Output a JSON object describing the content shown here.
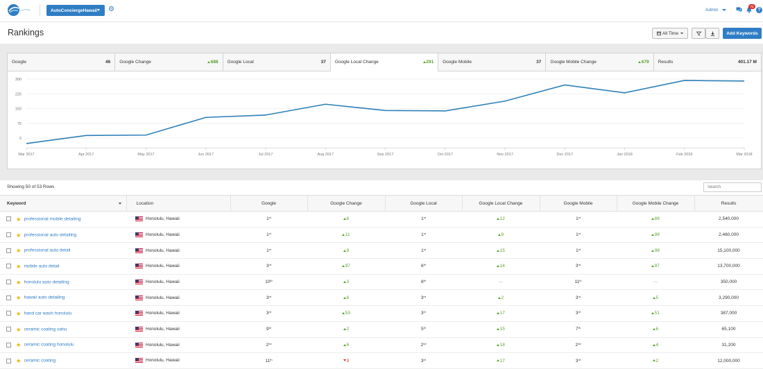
{
  "header": {
    "account_label": "AutoConciergeHawaii",
    "user_label": "Admin",
    "notification_count": "71",
    "help_glyph": "?"
  },
  "page": {
    "title": "Rankings",
    "time_filter_label": "All Time",
    "add_keywords_label": "Add Keywords"
  },
  "stats": [
    {
      "label": "Google",
      "value": "46",
      "trend": "none"
    },
    {
      "label": "Google Change",
      "value": "688",
      "trend": "up"
    },
    {
      "label": "Google Local",
      "value": "37",
      "trend": "none"
    },
    {
      "label": "Google Local Change",
      "value": "291",
      "trend": "up",
      "active": true
    },
    {
      "label": "Google Mobile",
      "value": "37",
      "trend": "none"
    },
    {
      "label": "Google Mobile Change",
      "value": "679",
      "trend": "up"
    },
    {
      "label": "Results",
      "value": "401.17 M",
      "trend": "none"
    }
  ],
  "chart_data": {
    "type": "line",
    "x": [
      "Mar 2017",
      "Apr 2017",
      "May 2017",
      "Jun 2017",
      "Jul 2017",
      "Aug 2017",
      "Sep 2017",
      "Oct 2017",
      "Nov 2017",
      "Dec 2017",
      "Jan 2018",
      "Feb 2018",
      "Mar 2018"
    ],
    "yticks": [
      "300",
      "225",
      "150",
      "75",
      "0"
    ],
    "ylim": [
      -50,
      300
    ],
    "series": [
      {
        "values": [
          -28,
          13,
          15,
          105,
          117,
          172,
          140,
          138,
          188,
          270,
          230,
          293,
          290
        ]
      }
    ],
    "grid": "horizontal",
    "line_color": "#2c7fb8"
  },
  "table": {
    "rows_info": "Showing 50 of 53 Rows",
    "search_placeholder": "Search",
    "columns": [
      "Keyword",
      "Location",
      "Google",
      "Google Change",
      "Google Local",
      "Google Local Change",
      "Google Mobile",
      "Google Mobile Change",
      "Results"
    ],
    "rows": [
      {
        "keyword": "professional mobile detailing",
        "location": "Honolulu, Hawaii",
        "g": "1",
        "g_sup": "st",
        "gc": "6",
        "gc_t": "up",
        "gl": "1",
        "gl_sup": "st",
        "glc": "12",
        "glc_t": "up",
        "gm": "1",
        "gm_sup": "st",
        "gmc": "89",
        "gmc_t": "up",
        "results": "2,540,000"
      },
      {
        "keyword": "professional auto detailing",
        "location": "Honolulu, Hawaii",
        "g": "1",
        "g_sup": "st",
        "gc": "11",
        "gc_t": "up",
        "gl": "1",
        "gl_sup": "st",
        "glc": "9",
        "glc_t": "up",
        "gm": "1",
        "gm_sup": "st",
        "gmc": "99",
        "gmc_t": "up",
        "results": "2,460,000"
      },
      {
        "keyword": "professional auto detail",
        "location": "Honolulu, Hawaii",
        "g": "1",
        "g_sup": "st",
        "gc": "9",
        "gc_t": "up",
        "gl": "1",
        "gl_sup": "st",
        "glc": "15",
        "glc_t": "up",
        "gm": "1",
        "gm_sup": "st",
        "gmc": "99",
        "gmc_t": "up",
        "results": "15,100,000"
      },
      {
        "keyword": "mobile auto detail",
        "location": "Honolulu, Hawaii",
        "g": "3",
        "g_sup": "rd",
        "gc": "97",
        "gc_t": "up",
        "gl": "6",
        "gl_sup": "th",
        "glc": "14",
        "glc_t": "up",
        "gm": "3",
        "gm_sup": "rd",
        "gmc": "97",
        "gmc_t": "up",
        "results": "13,700,000"
      },
      {
        "keyword": "honolulu auto detailing",
        "location": "Honolulu, Hawaii",
        "g": "10",
        "g_sup": "th",
        "gc": "3",
        "gc_t": "up",
        "gl": "8",
        "gl_sup": "th",
        "glc": "—",
        "glc_t": "none",
        "gm": "11",
        "gm_sup": "th",
        "gmc": "—",
        "gmc_t": "none",
        "results": "350,000"
      },
      {
        "keyword": "hawaii auto detailing",
        "location": "Honolulu, Hawaii",
        "g": "3",
        "g_sup": "rd",
        "gc": "6",
        "gc_t": "up",
        "gl": "3",
        "gl_sup": "rd",
        "glc": "2",
        "glc_t": "up",
        "gm": "3",
        "gm_sup": "rd",
        "gmc": "5",
        "gmc_t": "up",
        "results": "3,290,000"
      },
      {
        "keyword": "hand car wash honolulu",
        "location": "Honolulu, Hawaii",
        "g": "3",
        "g_sup": "rd",
        "gc": "53",
        "gc_t": "up",
        "gl": "3",
        "gl_sup": "rd",
        "glc": "17",
        "glc_t": "up",
        "gm": "3",
        "gm_sup": "rd",
        "gmc": "51",
        "gmc_t": "up",
        "results": "387,000"
      },
      {
        "keyword": "ceramic coating oahu",
        "location": "Honolulu, Hawaii",
        "g": "9",
        "g_sup": "th",
        "gc": "2",
        "gc_t": "up",
        "gl": "5",
        "gl_sup": "th",
        "glc": "15",
        "glc_t": "up",
        "gm": "7",
        "gm_sup": "th",
        "gmc": "6",
        "gmc_t": "up",
        "results": "65,100"
      },
      {
        "keyword": "ceramic coating honolulu",
        "location": "Honolulu, Hawaii",
        "g": "2",
        "g_sup": "nd",
        "gc": "6",
        "gc_t": "up",
        "gl": "2",
        "gl_sup": "nd",
        "glc": "18",
        "glc_t": "up",
        "gm": "2",
        "gm_sup": "nd",
        "gmc": "4",
        "gmc_t": "up",
        "results": "31,200"
      },
      {
        "keyword": "ceramic coating",
        "location": "Honolulu, Hawaii",
        "g": "11",
        "g_sup": "th",
        "gc": "3",
        "gc_t": "down",
        "gl": "3",
        "gl_sup": "rd",
        "glc": "17",
        "glc_t": "up",
        "gm": "3",
        "gm_sup": "rd",
        "gmc": "2",
        "gmc_t": "up",
        "results": "12,000,000"
      }
    ]
  }
}
